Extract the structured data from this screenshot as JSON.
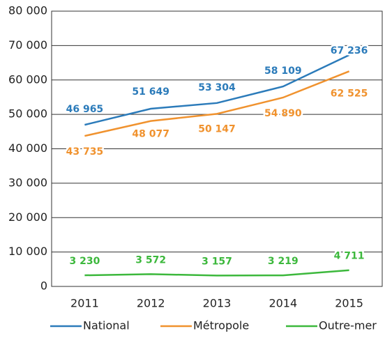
{
  "chart_data": {
    "type": "line",
    "categories": [
      "2011",
      "2012",
      "2013",
      "2014",
      "2015"
    ],
    "series": [
      {
        "name": "National",
        "color": "#2b7bba",
        "values": [
          46965,
          51649,
          53304,
          58109,
          67236
        ],
        "value_labels": [
          "46 965",
          "51 649",
          "53 304",
          "58 109",
          "67 236"
        ]
      },
      {
        "name": "Métropole",
        "color": "#f0922e",
        "values": [
          43735,
          48077,
          50147,
          54890,
          62525
        ],
        "value_labels": [
          "43 735",
          "48 077",
          "50 147",
          "54 890",
          "62 525"
        ]
      },
      {
        "name": "Outre-mer",
        "color": "#3cb83c",
        "values": [
          3230,
          3572,
          3157,
          3219,
          4711
        ],
        "value_labels": [
          "3 230",
          "3 572",
          "3 157",
          "3 219",
          "4 711"
        ]
      }
    ],
    "ylim": [
      0,
      80000
    ],
    "yticks": [
      0,
      {
        "value": 10000,
        "label": "10 000"
      },
      {
        "value": 20000,
        "label": "20 000"
      },
      {
        "value": 30000,
        "label": "30 000"
      },
      {
        "value": 40000,
        "label": "40 000"
      },
      {
        "value": 50000,
        "label": "50 000"
      },
      {
        "value": 60000,
        "label": "60 000"
      },
      {
        "value": 70000,
        "label": "70 000"
      },
      {
        "value": 80000,
        "label": "80 000"
      }
    ],
    "grid": true,
    "legend": "bottom"
  }
}
